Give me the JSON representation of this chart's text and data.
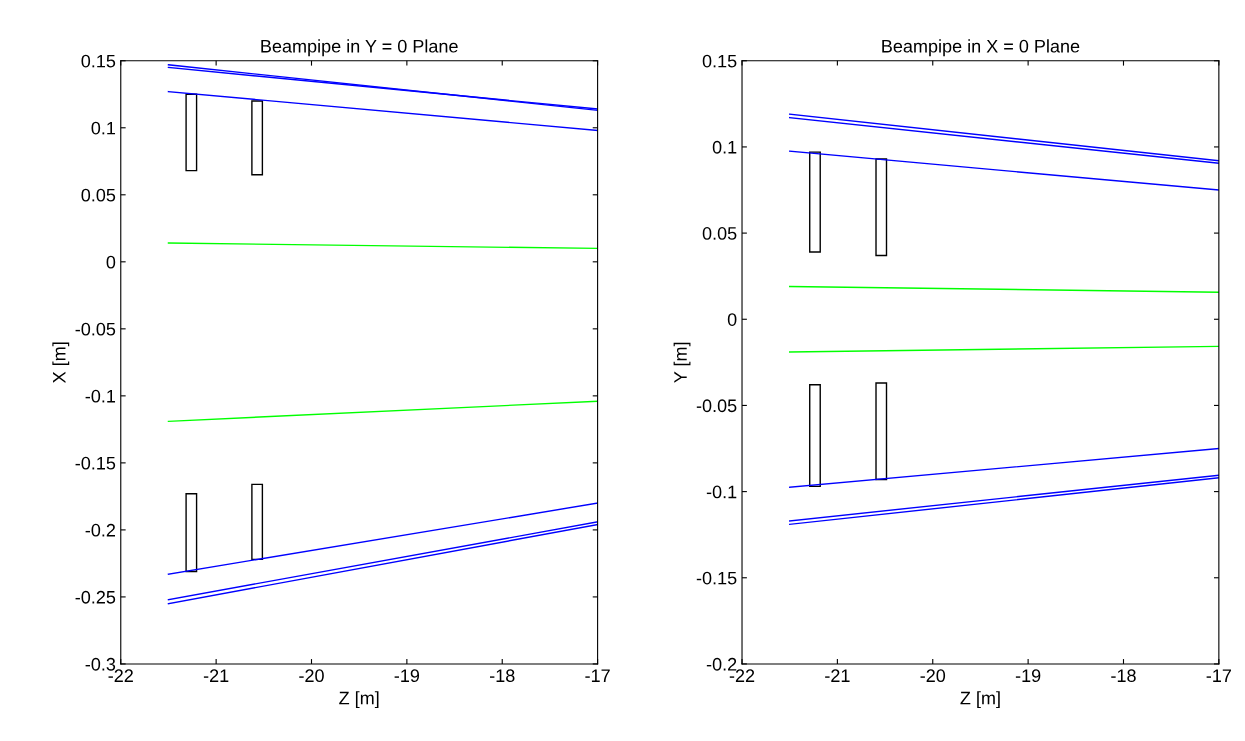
{
  "chart_data": [
    {
      "type": "line",
      "title": "Beampipe in Y = 0 Plane",
      "xlabel": "Z [m]",
      "ylabel": "X [m]",
      "xlim": [
        -22,
        -17
      ],
      "ylim": [
        -0.3,
        0.15
      ],
      "xticks": [
        -22,
        -21,
        -20,
        -19,
        -18,
        -17
      ],
      "yticks": [
        -0.3,
        -0.25,
        -0.2,
        -0.15,
        -0.1,
        -0.05,
        0,
        0.05,
        0.1,
        0.15
      ],
      "grid": false,
      "legend": false,
      "marker": "none",
      "line_style": "solid",
      "series": [
        {
          "color": "#0000ff",
          "x": [
            -21.5,
            -17
          ],
          "values": [
            0.147,
            0.113
          ]
        },
        {
          "color": "#0000ff",
          "x": [
            -21.5,
            -17
          ],
          "values": [
            0.145,
            0.114
          ]
        },
        {
          "color": "#0000ff",
          "x": [
            -21.5,
            -17
          ],
          "values": [
            0.127,
            0.098
          ]
        },
        {
          "color": "#00ff00",
          "x": [
            -21.5,
            -17
          ],
          "values": [
            0.014,
            0.01
          ]
        },
        {
          "color": "#00ff00",
          "x": [
            -21.5,
            -17
          ],
          "values": [
            -0.119,
            -0.104
          ]
        },
        {
          "color": "#0000ff",
          "x": [
            -21.5,
            -17
          ],
          "values": [
            -0.233,
            -0.18
          ]
        },
        {
          "color": "#0000ff",
          "x": [
            -21.5,
            -17
          ],
          "values": [
            -0.252,
            -0.194
          ]
        },
        {
          "color": "#0000ff",
          "x": [
            -21.5,
            -17
          ],
          "values": [
            -0.255,
            -0.196
          ]
        },
        {
          "type": "bar",
          "color": "#000000",
          "x": [
            -21.26,
            -20.57
          ],
          "base": [
            0.068,
            0.065
          ],
          "values": [
            0.057,
            0.055
          ]
        },
        {
          "type": "bar",
          "color": "#000000",
          "x": [
            -21.26,
            -20.57
          ],
          "base": [
            -0.231,
            -0.222
          ],
          "values": [
            0.058,
            0.056
          ]
        }
      ]
    },
    {
      "type": "line",
      "title": "Beampipe in X = 0 Plane",
      "xlabel": "Z [m]",
      "ylabel": "Y [m]",
      "xlim": [
        -22,
        -17
      ],
      "ylim": [
        -0.2,
        0.15
      ],
      "xticks": [
        -22,
        -21,
        -20,
        -19,
        -18,
        -17
      ],
      "yticks": [
        -0.2,
        -0.15,
        -0.1,
        -0.05,
        0,
        0.05,
        0.1,
        0.15
      ],
      "grid": false,
      "legend": false,
      "marker": "none",
      "line_style": "solid",
      "series": [
        {
          "color": "#0000ff",
          "x": [
            -21.5,
            -17
          ],
          "values": [
            0.119,
            0.092
          ]
        },
        {
          "color": "#0000ff",
          "x": [
            -21.5,
            -17
          ],
          "values": [
            0.117,
            0.0905
          ]
        },
        {
          "color": "#0000ff",
          "x": [
            -21.5,
            -17
          ],
          "values": [
            0.0975,
            0.075
          ]
        },
        {
          "color": "#00ff00",
          "x": [
            -21.5,
            -17
          ],
          "values": [
            0.019,
            0.0157
          ]
        },
        {
          "color": "#00ff00",
          "x": [
            -21.5,
            -17
          ],
          "values": [
            -0.019,
            -0.0157
          ]
        },
        {
          "color": "#0000ff",
          "x": [
            -21.5,
            -17
          ],
          "values": [
            -0.0975,
            -0.075
          ]
        },
        {
          "color": "#0000ff",
          "x": [
            -21.5,
            -17
          ],
          "values": [
            -0.117,
            -0.0905
          ]
        },
        {
          "color": "#0000ff",
          "x": [
            -21.5,
            -17
          ],
          "values": [
            -0.119,
            -0.092
          ]
        },
        {
          "type": "bar",
          "color": "#000000",
          "x": [
            -21.235,
            -20.54
          ],
          "base": [
            0.039,
            0.037
          ],
          "values": [
            0.058,
            0.056
          ]
        },
        {
          "type": "bar",
          "color": "#000000",
          "x": [
            -21.235,
            -20.54
          ],
          "base": [
            -0.097,
            -0.093
          ],
          "values": [
            0.059,
            0.056
          ]
        }
      ]
    }
  ]
}
